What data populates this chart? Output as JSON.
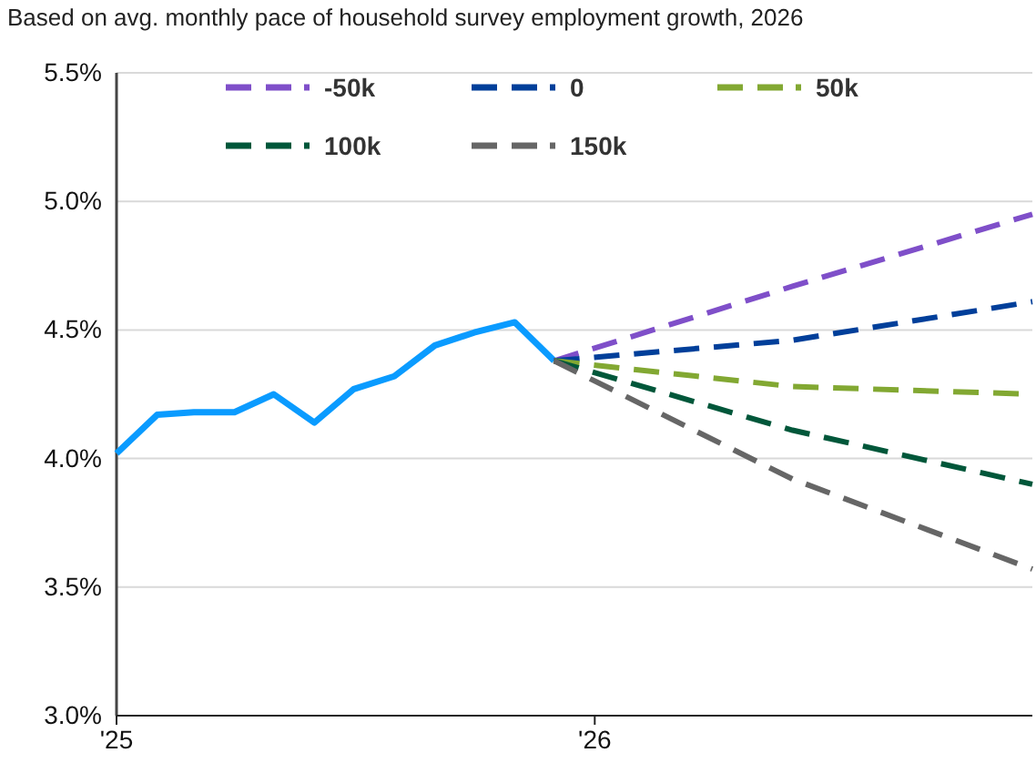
{
  "chart_data": {
    "type": "line",
    "title": "Based on avg. monthly pace of household survey employment growth, 2026",
    "xlim": [
      "2025-01",
      "2026-12"
    ],
    "xticks": [
      {
        "value": "2025-01",
        "label": "'25"
      },
      {
        "value": "2026-01",
        "label": "'26"
      }
    ],
    "ylim": [
      3.0,
      5.5
    ],
    "yticks": [
      {
        "value": 3.0,
        "label": "3.0%"
      },
      {
        "value": 3.5,
        "label": "3.5%"
      },
      {
        "value": 4.0,
        "label": "4.0%"
      },
      {
        "value": 4.5,
        "label": "4.5%"
      },
      {
        "value": 5.0,
        "label": "5.0%"
      },
      {
        "value": 5.5,
        "label": "5.5%"
      }
    ],
    "grid": "y",
    "legend": "top left",
    "marker": "none",
    "series": [
      {
        "color": "#0a9bff",
        "line_style": "solid",
        "x": [
          "2025-01",
          "2025-02",
          "2025-03",
          "2025-04",
          "2025-05",
          "2025-06",
          "2025-07",
          "2025-08",
          "2025-09",
          "2025-10",
          "2025-11",
          "2025-12"
        ],
        "values": [
          4.02,
          4.17,
          4.18,
          4.18,
          4.25,
          4.14,
          4.27,
          4.32,
          4.44,
          4.49,
          4.53,
          4.38
        ]
      },
      {
        "name": "-50k",
        "color": "#7f4fc9",
        "line_style": "dashed",
        "x": [
          "2025-12",
          "2026-06",
          "2026-12"
        ],
        "values": [
          4.38,
          4.67,
          4.95
        ]
      },
      {
        "name": "0",
        "color": "#003f9a",
        "line_style": "dashed",
        "x": [
          "2025-12",
          "2026-06",
          "2026-12"
        ],
        "values": [
          4.38,
          4.46,
          4.61
        ]
      },
      {
        "name": "50k",
        "color": "#82a832",
        "line_style": "dashed",
        "x": [
          "2025-12",
          "2026-06",
          "2026-12"
        ],
        "values": [
          4.38,
          4.28,
          4.25
        ]
      },
      {
        "name": "100k",
        "color": "#00573a",
        "line_style": "dashed",
        "x": [
          "2025-12",
          "2026-06",
          "2026-12"
        ],
        "values": [
          4.38,
          4.11,
          3.9
        ]
      },
      {
        "name": "150k",
        "color": "#666666",
        "line_style": "dashed",
        "x": [
          "2025-12",
          "2026-06",
          "2026-12"
        ],
        "values": [
          4.38,
          3.92,
          3.57
        ]
      }
    ]
  }
}
